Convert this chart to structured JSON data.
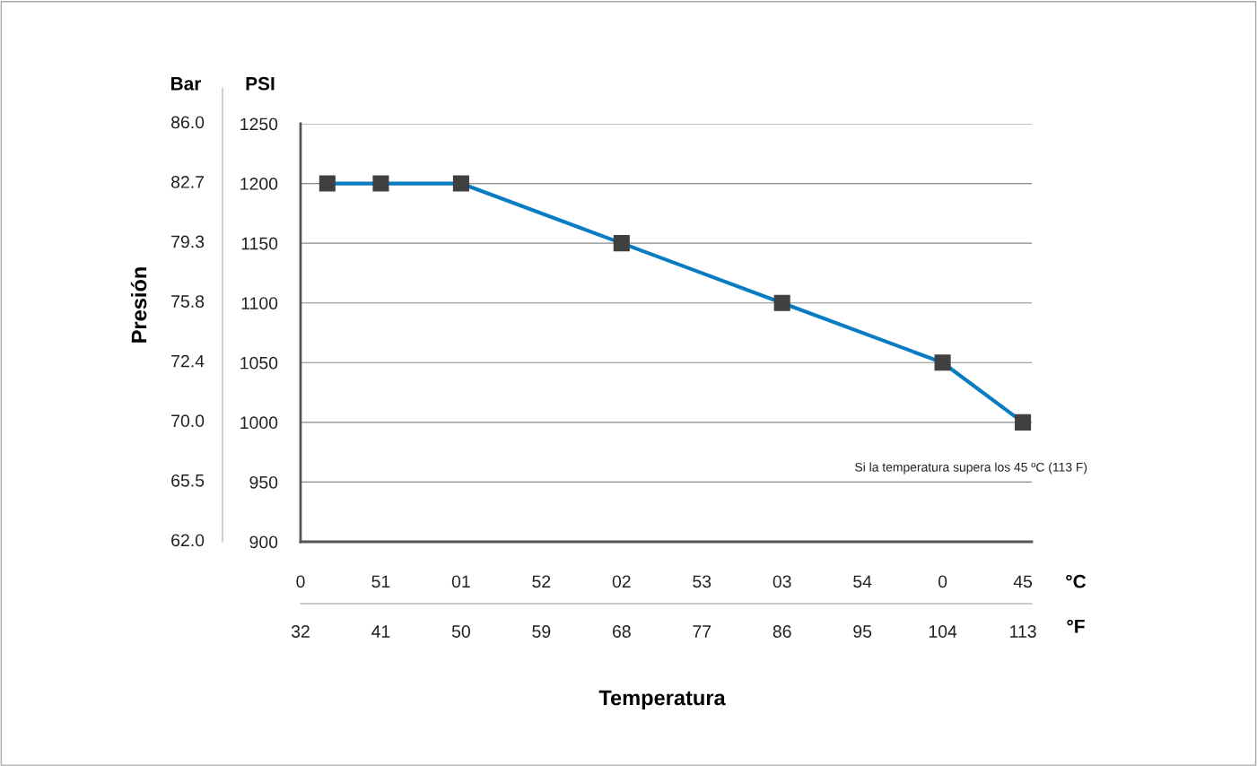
{
  "chart_data": {
    "type": "line",
    "xlabel": "Temperatura",
    "ylabel": "Presión",
    "y2label": "Bar",
    "x2label": "°C",
    "x": [
      35,
      41,
      50,
      68,
      86,
      104,
      113
    ],
    "series": [
      {
        "color": "#0a7cc1",
        "values": [
          1200,
          1200,
          1200,
          1150,
          1100,
          1050,
          1000
        ]
      }
    ],
    "marker": "square",
    "line_style": "solid",
    "grid": "y",
    "xlim": [
      32,
      114
    ],
    "xticks": [
      32,
      41,
      50,
      59,
      68,
      77,
      86,
      95,
      104,
      113
    ],
    "ylim": [
      900,
      1250
    ],
    "yticks": [
      900,
      950,
      1000,
      1050,
      1100,
      1150,
      1200,
      1250
    ],
    "annotations": [
      "PSI",
      "°F",
      "0",
      "51",
      "01",
      "52",
      "02",
      "53",
      "03",
      "54",
      "0",
      "45",
      "86.0",
      "82.7",
      "79.3",
      "75.8",
      "72.4",
      "70.0",
      "65.5",
      "62.0",
      "Si la temperatura supera los 45 ºC (113 F)"
    ]
  }
}
